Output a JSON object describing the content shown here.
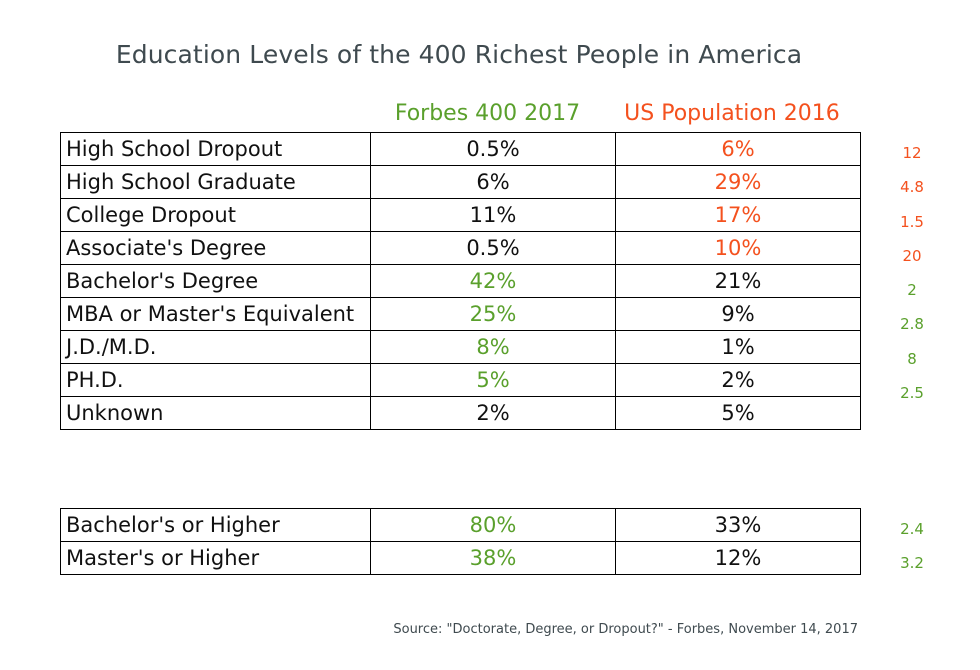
{
  "chart_data": {
    "type": "table",
    "title": "Education Levels of the 400 Richest People in America",
    "columns": [
      {
        "name": "Forbes 400 2017",
        "color": "#5aa02c"
      },
      {
        "name": "US Population 2016",
        "color": "#f4511e"
      }
    ],
    "rows": [
      {
        "category": "High School Dropout",
        "forbes": "0.5%",
        "us": "6%",
        "highlight": "us",
        "ratio": "12"
      },
      {
        "category": "High School Graduate",
        "forbes": "6%",
        "us": "29%",
        "highlight": "us",
        "ratio": "4.8"
      },
      {
        "category": "College Dropout",
        "forbes": "11%",
        "us": "17%",
        "highlight": "us",
        "ratio": "1.5"
      },
      {
        "category": "Associate's Degree",
        "forbes": "0.5%",
        "us": "10%",
        "highlight": "us",
        "ratio": "20"
      },
      {
        "category": "Bachelor's Degree",
        "forbes": "42%",
        "us": "21%",
        "highlight": "forbes",
        "ratio": "2"
      },
      {
        "category": "MBA or Master's Equivalent",
        "forbes": "25%",
        "us": "9%",
        "highlight": "forbes",
        "ratio": "2.8"
      },
      {
        "category": "J.D./M.D.",
        "forbes": "8%",
        "us": "1%",
        "highlight": "forbes",
        "ratio": "8"
      },
      {
        "category": "PH.D.",
        "forbes": "5%",
        "us": "2%",
        "highlight": "forbes",
        "ratio": "2.5"
      },
      {
        "category": "Unknown",
        "forbes": "2%",
        "us": "5%",
        "highlight": "none",
        "ratio": ""
      }
    ],
    "summary_rows": [
      {
        "category": "Bachelor's or Higher",
        "forbes": "80%",
        "us": "33%",
        "highlight": "forbes",
        "ratio": "2.4"
      },
      {
        "category": "Master's or Higher",
        "forbes": "38%",
        "us": "12%",
        "highlight": "forbes",
        "ratio": "3.2"
      }
    ],
    "source": "Source: \"Doctorate, Degree, or Dropout?\" - Forbes, November 14, 2017"
  },
  "colors": {
    "forbes": "#5aa02c",
    "us": "#f4511e",
    "text": "#111111",
    "title": "#3f4a4f"
  }
}
